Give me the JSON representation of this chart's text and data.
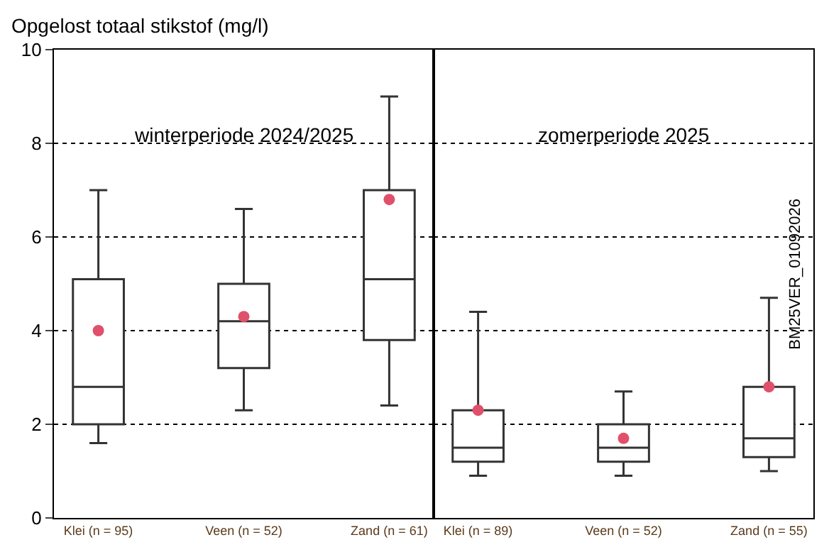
{
  "chart_data": [
    {
      "type": "box",
      "ylabel": "Opgelost totaal stikstof (mg/l)",
      "categories": [
        "Klei (n = 95)",
        "Veen (n = 52)",
        "Zand (n = 61)"
      ],
      "ylim": [
        0,
        10
      ],
      "yticks": [
        0,
        2,
        4,
        6,
        8,
        10
      ],
      "grid": "y",
      "annotations": [
        "winterperiode 2024/2025"
      ],
      "series": [
        {
          "color": "#333333",
          "boxes": [
            {
              "low": 1.6,
              "q1": 2.0,
              "median": 2.8,
              "q3": 5.1,
              "high": 7.0
            },
            {
              "low": 2.3,
              "q1": 3.2,
              "median": 4.2,
              "q3": 5.0,
              "high": 6.6
            },
            {
              "low": 2.4,
              "q1": 3.8,
              "median": 5.1,
              "q3": 7.0,
              "high": 9.0
            }
          ]
        },
        {
          "type": "scatter",
          "color": "#e0506a",
          "marker": "circle",
          "x": [
            "Klei (n = 95)",
            "Veen (n = 52)",
            "Zand (n = 61)"
          ],
          "values": [
            4.0,
            4.3,
            6.8
          ]
        }
      ]
    },
    {
      "type": "box",
      "categories": [
        "Klei (n = 89)",
        "Veen (n = 52)",
        "Zand (n = 55)"
      ],
      "ylim": [
        0,
        10
      ],
      "yticks": [
        0,
        2,
        4,
        6,
        8,
        10
      ],
      "grid": "y",
      "tick_labels": "x",
      "annotations": [
        "zomerperiode 2025",
        "BM25VER_01092026"
      ],
      "series": [
        {
          "color": "#333333",
          "boxes": [
            {
              "low": 0.9,
              "q1": 1.2,
              "median": 1.5,
              "q3": 2.3,
              "high": 4.4
            },
            {
              "low": 0.9,
              "q1": 1.2,
              "median": 1.5,
              "q3": 2.0,
              "high": 2.7
            },
            {
              "low": 1.0,
              "q1": 1.3,
              "median": 1.7,
              "q3": 2.8,
              "high": 4.7
            }
          ]
        },
        {
          "type": "scatter",
          "color": "#e0506a",
          "marker": "circle",
          "x": [
            "Klei (n = 89)",
            "Veen (n = 52)",
            "Zand (n = 55)"
          ],
          "values": [
            2.3,
            1.7,
            2.8
          ]
        }
      ]
    }
  ]
}
